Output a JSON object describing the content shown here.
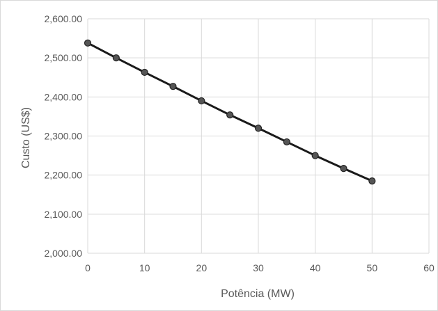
{
  "chart_data": {
    "type": "line",
    "title": "",
    "xlabel": "Potência (MW)",
    "ylabel": "Custo (US$)",
    "xlim": [
      0,
      60
    ],
    "ylim": [
      2000,
      2600
    ],
    "xticks": [
      0,
      10,
      20,
      30,
      40,
      50,
      60
    ],
    "yticks": [
      2000,
      2100,
      2200,
      2300,
      2400,
      2500,
      2600
    ],
    "xtick_labels": [
      "0",
      "10",
      "20",
      "30",
      "40",
      "50",
      "60"
    ],
    "ytick_labels": [
      "2,000.00",
      "2,100.00",
      "2,200.00",
      "2,300.00",
      "2,400.00",
      "2,500.00",
      "2,600.00"
    ],
    "grid": true,
    "legend": "none",
    "series": [
      {
        "color": "#1a1a1a",
        "marker_color": "#555555",
        "x": [
          0,
          5,
          10,
          15,
          20,
          25,
          30,
          35,
          40,
          45,
          50
        ],
        "y": [
          2538,
          2500,
          2463,
          2427,
          2390,
          2354,
          2320,
          2285,
          2250,
          2217,
          2185
        ]
      }
    ]
  }
}
